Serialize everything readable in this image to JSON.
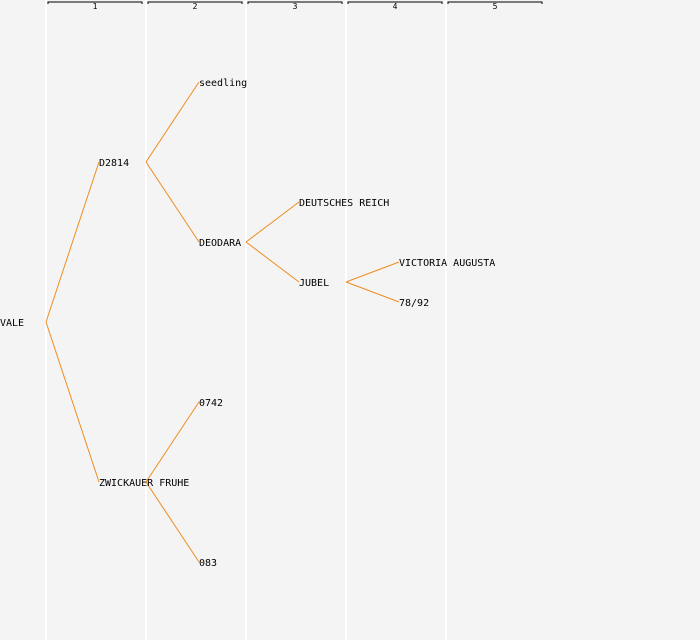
{
  "generations": [
    "1",
    "2",
    "3",
    "4",
    "5"
  ],
  "edge_color": "#f08c1e",
  "nodes": [
    {
      "id": "n0",
      "label": "VALE",
      "gen": 0,
      "parent": null
    },
    {
      "id": "n1",
      "label": "D2814",
      "gen": 1,
      "parent": "n0"
    },
    {
      "id": "n2",
      "label": "ZWICKAUER FRUHE",
      "gen": 1,
      "parent": "n0"
    },
    {
      "id": "n3",
      "label": "seedling",
      "gen": 2,
      "parent": "n1"
    },
    {
      "id": "n4",
      "label": "DEODARA",
      "gen": 2,
      "parent": "n1"
    },
    {
      "id": "n5",
      "label": "0742",
      "gen": 2,
      "parent": "n2"
    },
    {
      "id": "n6",
      "label": "083",
      "gen": 2,
      "parent": "n2"
    },
    {
      "id": "n7",
      "label": "DEUTSCHES REICH",
      "gen": 3,
      "parent": "n4"
    },
    {
      "id": "n8",
      "label": "JUBEL",
      "gen": 3,
      "parent": "n4"
    },
    {
      "id": "n9",
      "label": "VICTORIA AUGUSTA",
      "gen": 4,
      "parent": "n8"
    },
    {
      "id": "n10",
      "label": "78/92",
      "gen": 4,
      "parent": "n8"
    }
  ]
}
